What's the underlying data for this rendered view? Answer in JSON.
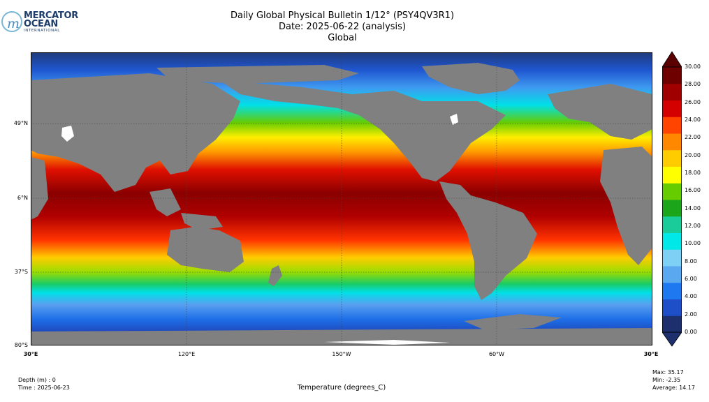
{
  "logo": {
    "line1": "MERCATOR",
    "line2": "OCEAN",
    "line3": "INTERNATIONAL",
    "mark": "m"
  },
  "title": {
    "line1": "Daily Global Physical Bulletin 1/12° (PSY4QV3R1)",
    "line2": "Date: 2025-06-22 (analysis)",
    "line3": "Global"
  },
  "map": {
    "lat_ticks": [
      "49°N",
      "6°N",
      "37°S",
      "80°S"
    ],
    "lon_ticks": [
      "30°E",
      "120°E",
      "150°W",
      "60°W",
      "30°E"
    ],
    "land_color": "#808080",
    "ice_color": "#ffffff"
  },
  "colorbar": {
    "ticks": [
      "30.00",
      "28.00",
      "26.00",
      "24.00",
      "22.00",
      "20.00",
      "18.00",
      "16.00",
      "14.00",
      "12.00",
      "10.00",
      "8.00",
      "6.00",
      "4.00",
      "2.00",
      "0.00"
    ],
    "label": "Temperature (degrees_C)",
    "colors": [
      "#1e2f6e",
      "#1f4fc8",
      "#1e78ef",
      "#5aa8f0",
      "#7fd0f5",
      "#00e8e8",
      "#19cc99",
      "#1aa51a",
      "#66cc00",
      "#ffff00",
      "#ffcc00",
      "#ff8800",
      "#ff4400",
      "#d40000",
      "#a00000",
      "#6e0000"
    ]
  },
  "footer": {
    "depth": "Depth (m) : 0",
    "time": "Time : 2025-06-23",
    "max": "Max: 35.17",
    "min": "Min: -2.35",
    "average": "Average: 14.17"
  }
}
